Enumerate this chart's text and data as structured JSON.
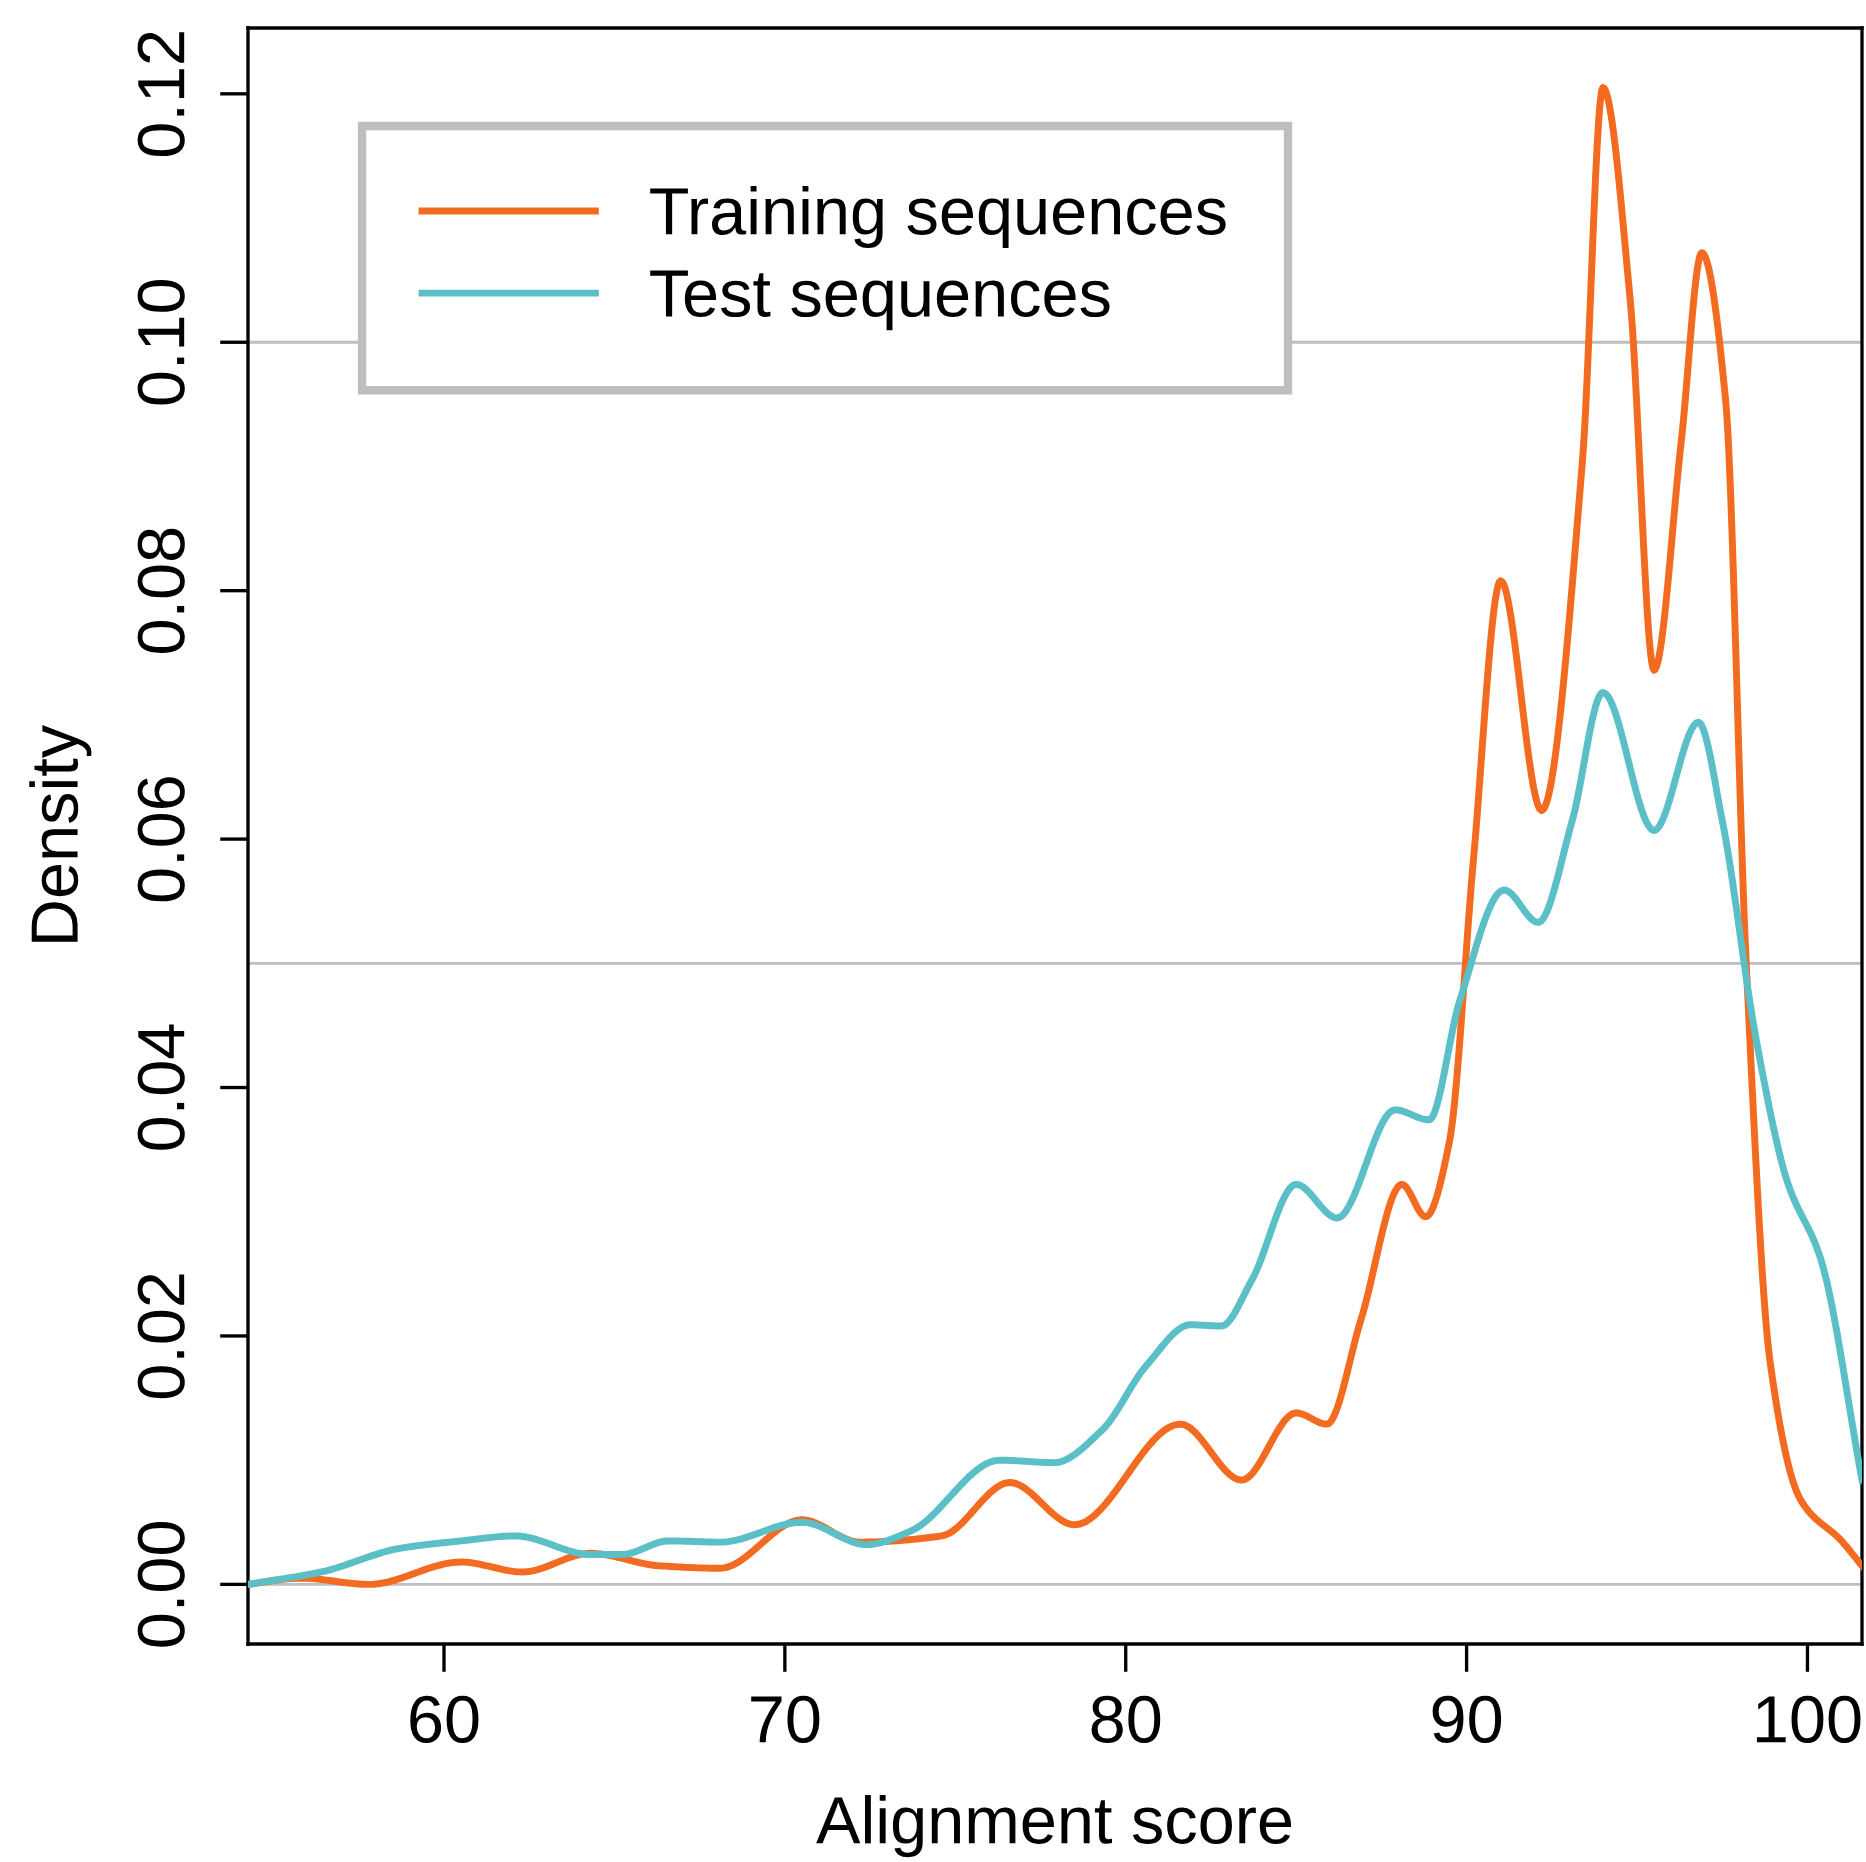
{
  "chart_data": {
    "type": "line",
    "xlabel": "Alignment score",
    "ylabel": "Density",
    "xlim": [
      54.25,
      101.6
    ],
    "ylim": [
      -0.0048,
      0.1253
    ],
    "xticks": [
      60,
      70,
      80,
      90,
      100
    ],
    "yticks": [
      {
        "value": 0,
        "label": "0.00"
      },
      {
        "value": 0.02,
        "label": "0.02"
      },
      {
        "value": 0.04,
        "label": "0.04"
      },
      {
        "value": 0.06,
        "label": "0.06"
      },
      {
        "value": 0.08,
        "label": "0.08"
      },
      {
        "value": 0.1,
        "label": "0.10"
      },
      {
        "value": 0.12,
        "label": "0.12"
      }
    ],
    "legend": "top left",
    "grid": false,
    "line_style": "solid",
    "marker": "none",
    "ref_lines": [
      {
        "axis": "y",
        "value": 0,
        "color": "#bebebe"
      },
      {
        "axis": "y",
        "value": 0.05,
        "color": "#bebebe"
      },
      {
        "axis": "y",
        "value": 0.1,
        "color": "#bebebe"
      }
    ],
    "series": [
      {
        "name": "Training sequences",
        "color": "#f26b21",
        "x": [
          54.25,
          55.8,
          57.8,
          60.5,
          62.3,
          64.3,
          66.3,
          68.1,
          70.5,
          72.2,
          74.6,
          76.6,
          78.5,
          81.6,
          83.4,
          85.0,
          85.9,
          86.9,
          88.1,
          88.8,
          89.5,
          90.2,
          91.0,
          92.2,
          93.4,
          94.0,
          94.8,
          95.5,
          96.3,
          96.9,
          97.6,
          98.2,
          98.9,
          99.8,
          101.0,
          101.6
        ],
        "values": [
          0,
          0.0005,
          0,
          0.0018,
          0.001,
          0.0025,
          0.0015,
          0.0013,
          0.0052,
          0.0034,
          0.0039,
          0.0082,
          0.0048,
          0.0129,
          0.0084,
          0.0138,
          0.0129,
          0.0213,
          0.0322,
          0.0296,
          0.0357,
          0.0583,
          0.0808,
          0.0623,
          0.0905,
          0.1205,
          0.1034,
          0.0736,
          0.0921,
          0.1072,
          0.0953,
          0.0502,
          0.018,
          0.0068,
          0.0035,
          0.0015
        ]
      },
      {
        "name": "Test sequences",
        "color": "#5bbfc8",
        "x": [
          54.25,
          56.4,
          58.7,
          60.5,
          62.1,
          64.3,
          65.2,
          66.6,
          68.1,
          70.5,
          72.4,
          73.7,
          76.3,
          77.9,
          79.3,
          80.6,
          81.9,
          82.8,
          83.7,
          85.0,
          86.2,
          87.9,
          88.9,
          89.8,
          91.1,
          92.1,
          93.1,
          94.0,
          95.5,
          96.8,
          97.5,
          98.5,
          99.4,
          100.4,
          101.6
        ],
        "values": [
          0,
          0.001,
          0.0029,
          0.0035,
          0.0039,
          0.0024,
          0.0024,
          0.0035,
          0.0034,
          0.005,
          0.0032,
          0.0043,
          0.01,
          0.0098,
          0.0124,
          0.0176,
          0.0209,
          0.0208,
          0.0245,
          0.0322,
          0.0295,
          0.0382,
          0.0374,
          0.047,
          0.0559,
          0.0533,
          0.0615,
          0.0718,
          0.0607,
          0.0694,
          0.0615,
          0.0438,
          0.0325,
          0.0261,
          0.0084
        ]
      }
    ]
  }
}
